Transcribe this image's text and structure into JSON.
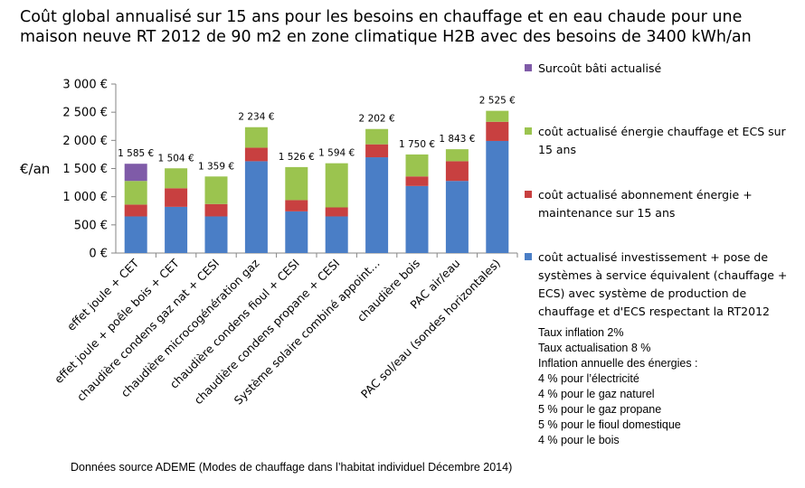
{
  "title_lines": [
    "Coût global annualisé sur 15 ans pour les besoins en chauffage et en eau chaude pour une",
    "maison neuve RT 2012 de 90 m2 en zone climatique H2B avec des besoins de 3400 kWh/an"
  ],
  "notes": [
    "Taux inflation 2%",
    "Taux actualisation 8 %",
    "Inflation annuelle des énergies :",
    "4 % pour l’électricité",
    "4 % pour le gaz naturel",
    "5 % pour le gaz propane",
    "5 % pour le fioul domestique",
    "4 % pour le bois"
  ],
  "source": "Données source ADEME (Modes de chauffage dans l’habitat individuel Décembre 2014)",
  "colors": {
    "investissement": "#4a7ec6",
    "abonnement": "#c84040",
    "energie": "#9bc44f",
    "surcout": "#7f5ba8",
    "axis": "#868686"
  },
  "chart_data": {
    "type": "bar",
    "stacked": true,
    "ylabel": "€/an",
    "ylim": [
      0,
      3000
    ],
    "yticks": [
      "0 €",
      "500 €",
      "1 000 €",
      "1 500 €",
      "2 000 €",
      "2 500 €",
      "3 000 €"
    ],
    "grid": false,
    "legend_position": "right",
    "categories": [
      "effet joule + CET",
      "effet joule + poêle bois + CET",
      "chaudière condens gaz nat + CESI",
      "chaudière microcogénération gaz",
      "chaudière condens fioul + CESI",
      "chaudière condens propane + CESI",
      "Système solaire combiné appoint…",
      "chaudière bois",
      "PAC air/eau",
      "PAC sol/eau (sondes horizontales)"
    ],
    "totals": [
      "1 585 €",
      "1 504 €",
      "1 359 €",
      "2 234 €",
      "1 526 €",
      "1 594 €",
      "2 202 €",
      "1 750 €",
      "1 843 €",
      "2 525 €"
    ],
    "series": [
      {
        "name": "coût actualisé investissement + pose de systèmes à service équivalent (chauffage + ECS) avec système de production de chauffage et d'ECS respectant la RT2012",
        "key": "investissement",
        "values": [
          650,
          820,
          650,
          1630,
          740,
          650,
          1700,
          1190,
          1280,
          1990
        ]
      },
      {
        "name": "coût actualisé abonnement énergie + maintenance sur 15 ans",
        "key": "abonnement",
        "values": [
          210,
          330,
          220,
          240,
          200,
          160,
          230,
          170,
          350,
          340
        ]
      },
      {
        "name": "coût actualisé énergie chauffage et ECS sur 15 ans",
        "key": "energie",
        "values": [
          420,
          354,
          489,
          364,
          586,
          784,
          272,
          390,
          213,
          195
        ]
      },
      {
        "name": "Surcoût bâti actualisé",
        "key": "surcout",
        "values": [
          305,
          0,
          0,
          0,
          0,
          0,
          0,
          0,
          0,
          0
        ]
      }
    ]
  }
}
